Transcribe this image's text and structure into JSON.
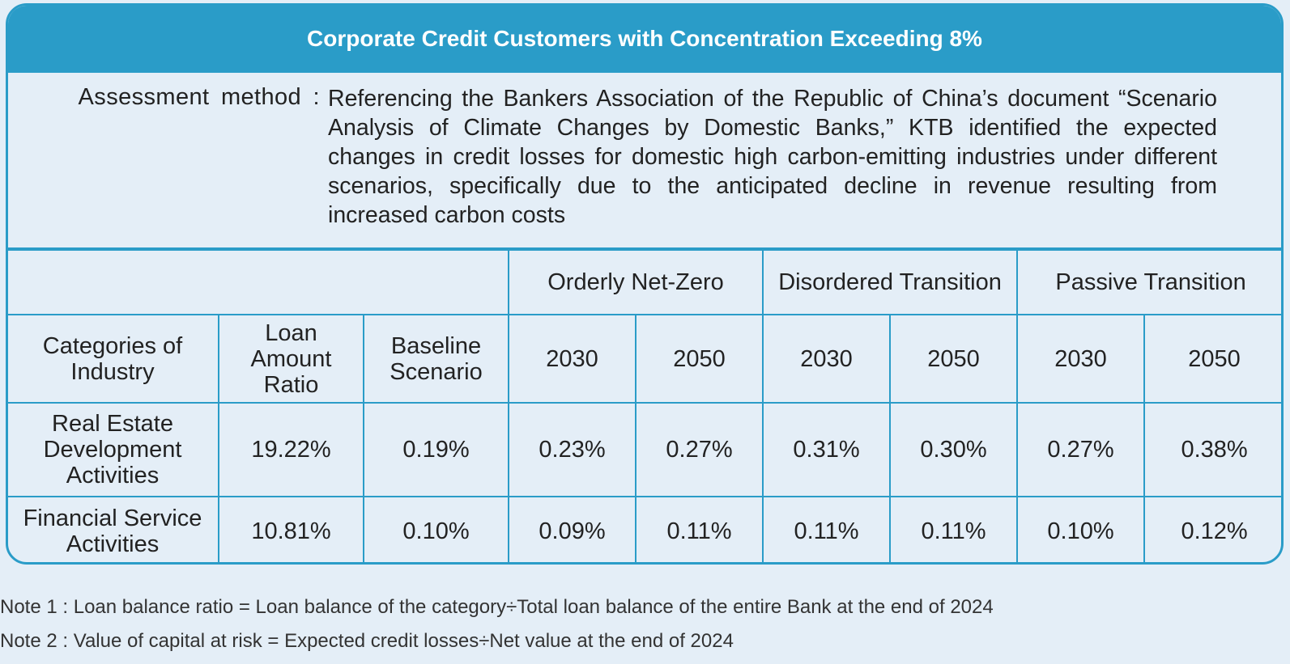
{
  "title": "Corporate Credit Customers with Concentration Exceeding 8%",
  "assessment": {
    "label": "Assessment method :",
    "text": "Referencing the Bankers Association of the Republic of China’s document “Scenario Analysis of Climate Changes by Domestic Banks,” KTB identified the expected changes in credit losses for domestic high carbon-emitting industries under different scenarios, specifically due to the anticipated decline in revenue resulting from increased carbon costs"
  },
  "table": {
    "scenarios": [
      "Orderly Net-Zero",
      "Disordered Transition",
      "Passive Transition"
    ],
    "headers": {
      "category": "Categories of Industry",
      "loan_ratio": "Loan Amount Ratio",
      "baseline": "Baseline Scenario",
      "years": [
        "2030",
        "2050",
        "2030",
        "2050",
        "2030",
        "2050"
      ]
    },
    "rows": [
      {
        "category": "Real Estate Development Activities",
        "loan_ratio": "19.22%",
        "baseline": "0.19%",
        "values": [
          "0.23%",
          "0.27%",
          "0.31%",
          "0.30%",
          "0.27%",
          "0.38%"
        ]
      },
      {
        "category": "Financial Service Activities",
        "loan_ratio": "10.81%",
        "baseline": "0.10%",
        "values": [
          "0.09%",
          "0.11%",
          "0.11%",
          "0.11%",
          "0.10%",
          "0.12%"
        ]
      }
    ]
  },
  "notes": [
    "Note 1 : Loan balance ratio = Loan balance of the category÷Total loan balance of the entire Bank at the end of 2024",
    "Note 2 : Value of capital at risk = Expected credit losses÷Net value at the end of 2024"
  ],
  "colors": {
    "accent": "#2a9cc8",
    "background": "#e4eef7"
  }
}
